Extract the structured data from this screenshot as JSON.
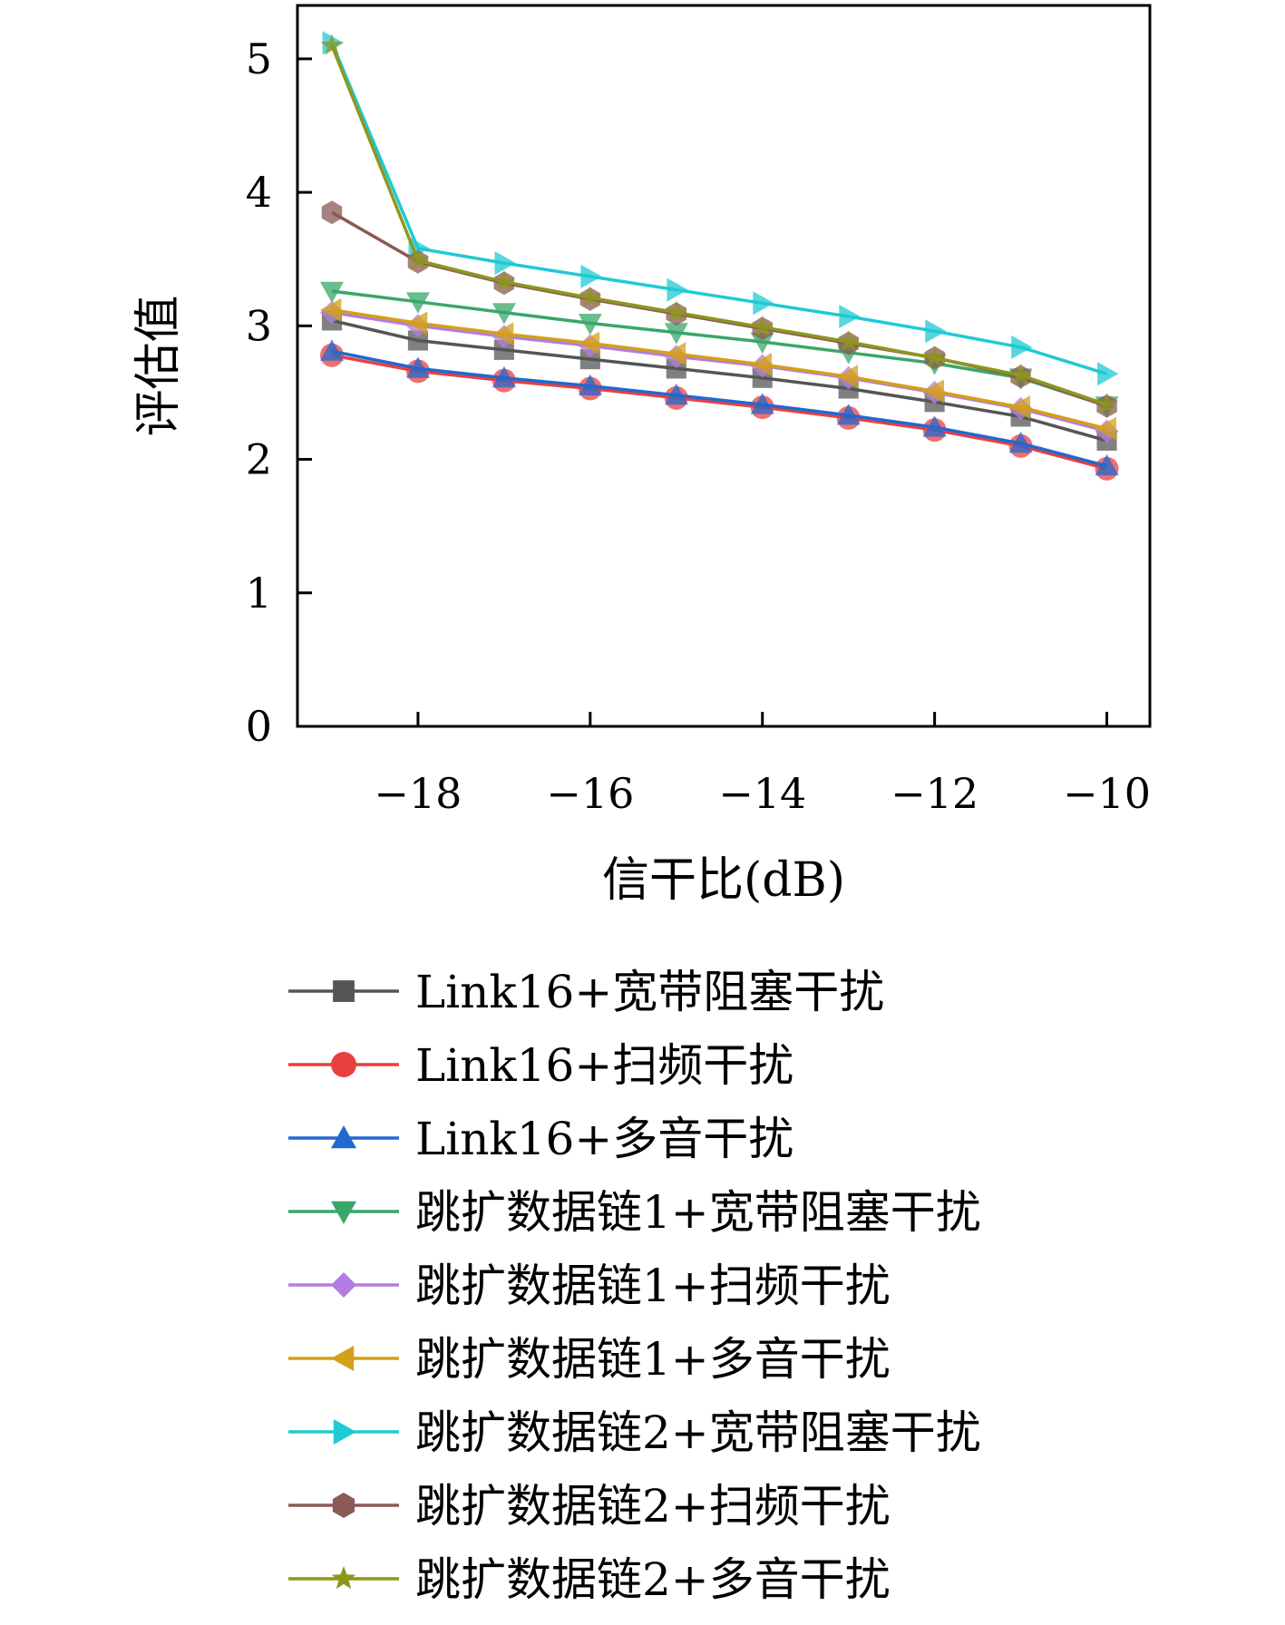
{
  "chart_data": {
    "type": "line",
    "title": "",
    "xlabel": "信干比(dB)",
    "ylabel": "评估值",
    "x": [
      -19,
      -18,
      -17,
      -16,
      -15,
      -14,
      -13,
      -12,
      -11,
      -10
    ],
    "xlim": [
      -19.4,
      -9.5
    ],
    "ylim": [
      0,
      5.4
    ],
    "xticks": [
      -18,
      -16,
      -14,
      -12,
      -10
    ],
    "yticks": [
      0,
      1,
      2,
      3,
      4,
      5
    ],
    "xtick_labels": [
      "−18",
      "−16",
      "−14",
      "−12",
      "−10"
    ],
    "ytick_labels": [
      "0",
      "1",
      "2",
      "3",
      "4",
      "5"
    ],
    "grid": false,
    "legend_position": "below",
    "series": [
      {
        "name": "Link16+宽带阻塞干扰",
        "color": "#555555",
        "marker": "square",
        "values": [
          3.04,
          2.89,
          2.82,
          2.75,
          2.68,
          2.61,
          2.53,
          2.43,
          2.32,
          2.14
        ]
      },
      {
        "name": "Link16+扫频干扰",
        "color": "#e8403f",
        "marker": "circle",
        "values": [
          2.78,
          2.66,
          2.59,
          2.53,
          2.46,
          2.39,
          2.31,
          2.22,
          2.1,
          1.93
        ]
      },
      {
        "name": "Link16+多音干扰",
        "color": "#2268d0",
        "marker": "triangle-up",
        "values": [
          2.81,
          2.68,
          2.61,
          2.55,
          2.48,
          2.41,
          2.33,
          2.24,
          2.12,
          1.95
        ]
      },
      {
        "name": "跳扩数据链1+宽带阻塞干扰",
        "color": "#3aa66a",
        "marker": "triangle-down",
        "values": [
          3.26,
          3.18,
          3.1,
          3.02,
          2.95,
          2.88,
          2.8,
          2.72,
          2.61,
          2.4
        ]
      },
      {
        "name": "跳扩数据链1+扫频干扰",
        "color": "#b07ee0",
        "marker": "diamond",
        "values": [
          3.1,
          3.0,
          2.92,
          2.85,
          2.77,
          2.7,
          2.61,
          2.5,
          2.38,
          2.21
        ]
      },
      {
        "name": "跳扩数据链1+多音干扰",
        "color": "#d4a017",
        "marker": "triangle-left",
        "values": [
          3.12,
          3.02,
          2.94,
          2.87,
          2.79,
          2.71,
          2.62,
          2.51,
          2.39,
          2.23
        ]
      },
      {
        "name": "跳扩数据链2+宽带阻塞干扰",
        "color": "#1ecad3",
        "marker": "triangle-right",
        "values": [
          5.12,
          3.58,
          3.47,
          3.37,
          3.27,
          3.17,
          3.07,
          2.96,
          2.84,
          2.64
        ]
      },
      {
        "name": "跳扩数据链2+扫频干扰",
        "color": "#8a5a55",
        "marker": "hexagon",
        "values": [
          3.85,
          3.48,
          3.32,
          3.2,
          3.09,
          2.98,
          2.87,
          2.76,
          2.62,
          2.4
        ]
      },
      {
        "name": "跳扩数据链2+多音干扰",
        "color": "#8f961c",
        "marker": "star",
        "values": [
          5.1,
          3.49,
          3.33,
          3.21,
          3.1,
          2.99,
          2.88,
          2.76,
          2.63,
          2.41
        ]
      }
    ]
  }
}
